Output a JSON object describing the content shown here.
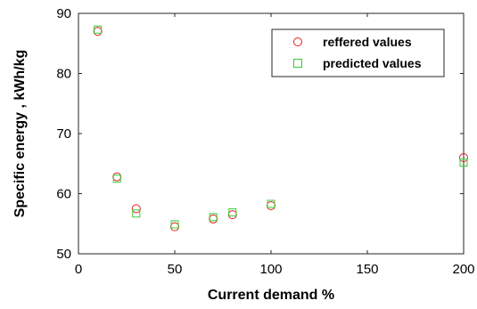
{
  "chart_data": {
    "type": "scatter",
    "xlabel": "Current demand %",
    "ylabel": "Specific energy , kWh/kg",
    "xlim": [
      0,
      200
    ],
    "ylim": [
      50,
      90
    ],
    "x_ticks": [
      0,
      50,
      100,
      150,
      200
    ],
    "y_ticks": [
      50,
      60,
      70,
      80,
      90
    ],
    "grid": false,
    "legend_position": "top-right",
    "series": [
      {
        "name": "reffered values",
        "marker": "circle",
        "color": "#e41a1c",
        "x": [
          10,
          20,
          30,
          50,
          70,
          80,
          100,
          200
        ],
        "y": [
          87.0,
          62.8,
          57.5,
          54.5,
          55.8,
          56.5,
          58.0,
          66.0
        ]
      },
      {
        "name": "predicted values",
        "marker": "square",
        "color": "#33cc33",
        "x": [
          10,
          20,
          30,
          50,
          70,
          80,
          100,
          200
        ],
        "y": [
          87.3,
          62.5,
          56.7,
          54.9,
          56.1,
          56.9,
          58.3,
          65.2
        ]
      }
    ]
  }
}
